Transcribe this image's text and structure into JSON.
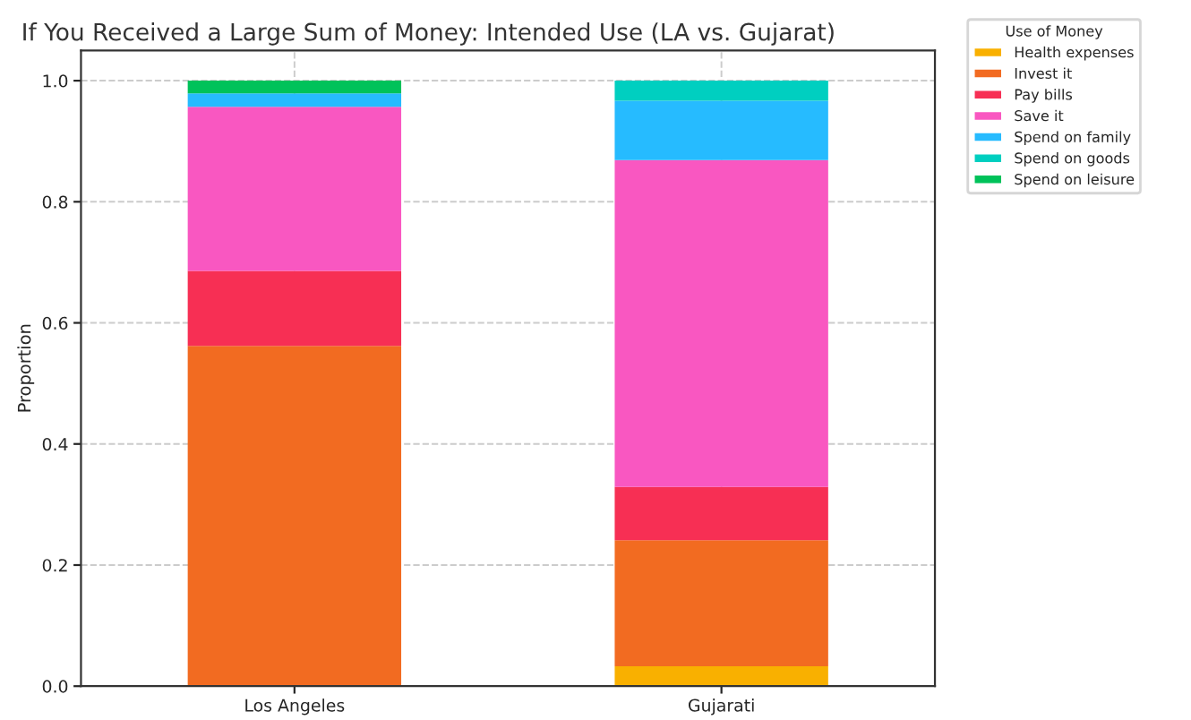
{
  "chart_data": {
    "type": "bar",
    "stacked": true,
    "title": "If You Received a Large Sum of Money: Intended Use (LA vs. Gujarat)",
    "ylabel": "Proportion",
    "legend_title": "Use of Money",
    "legend": "top right",
    "grid": true,
    "categories": [
      "Los Angeles",
      "Gujarati"
    ],
    "ylim": [
      0,
      1.05
    ],
    "yticks": [
      {
        "value": 0,
        "label": "0.0"
      },
      {
        "value": 0.2,
        "label": "0.2"
      },
      {
        "value": 0.4,
        "label": "0.4"
      },
      {
        "value": 0.6,
        "label": "0.6"
      },
      {
        "value": 0.8,
        "label": "0.8"
      },
      {
        "value": 1.0,
        "label": "1.0"
      }
    ],
    "series": [
      {
        "name": "Health expenses",
        "color": "#f9b000",
        "values": [
          null,
          0.033
        ]
      },
      {
        "name": "Invest it",
        "color": "#f26b21",
        "values": [
          0.562,
          0.208
        ]
      },
      {
        "name": "Pay bills",
        "color": "#f72f54",
        "values": [
          0.124,
          0.088
        ]
      },
      {
        "name": "Save it",
        "color": "#f957c1",
        "values": [
          0.271,
          0.54
        ]
      },
      {
        "name": "Spend on family",
        "color": "#26bbff",
        "values": [
          0.022,
          0.098
        ]
      },
      {
        "name": "Spend on goods",
        "color": "#00cfc0",
        "values": [
          null,
          0.033
        ]
      },
      {
        "name": "Spend on leisure",
        "color": "#00c25a",
        "values": [
          0.021,
          null
        ]
      }
    ]
  }
}
